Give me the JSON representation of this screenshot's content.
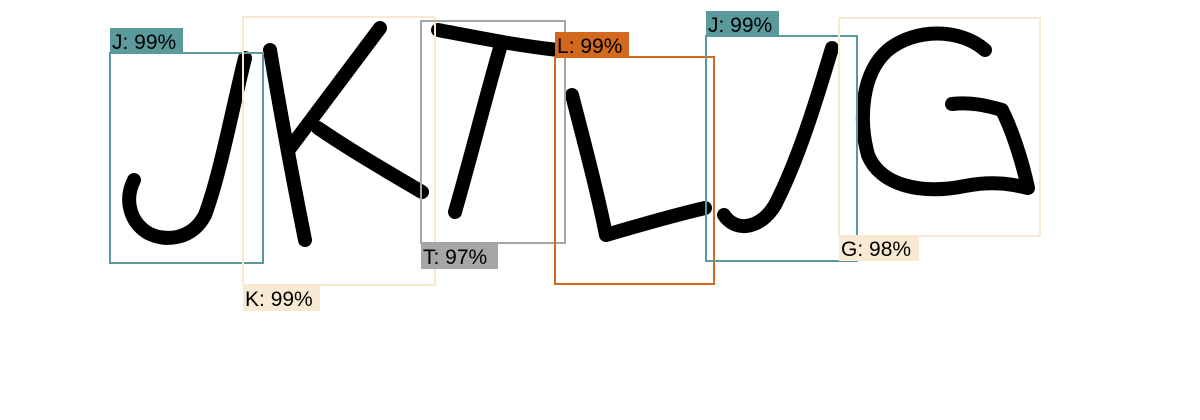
{
  "detections": [
    {
      "letter": "J",
      "confidence": "99%",
      "color": "#5b9a9c"
    },
    {
      "letter": "K",
      "confidence": "99%",
      "color": "#f7e9d2"
    },
    {
      "letter": "T",
      "confidence": "97%",
      "color": "#a6a6a6"
    },
    {
      "letter": "L",
      "confidence": "99%",
      "color": "#d2691e"
    },
    {
      "letter": "J",
      "confidence": "99%",
      "color": "#5b9a9c"
    },
    {
      "letter": "G",
      "confidence": "98%",
      "color": "#f7e9d2"
    }
  ]
}
